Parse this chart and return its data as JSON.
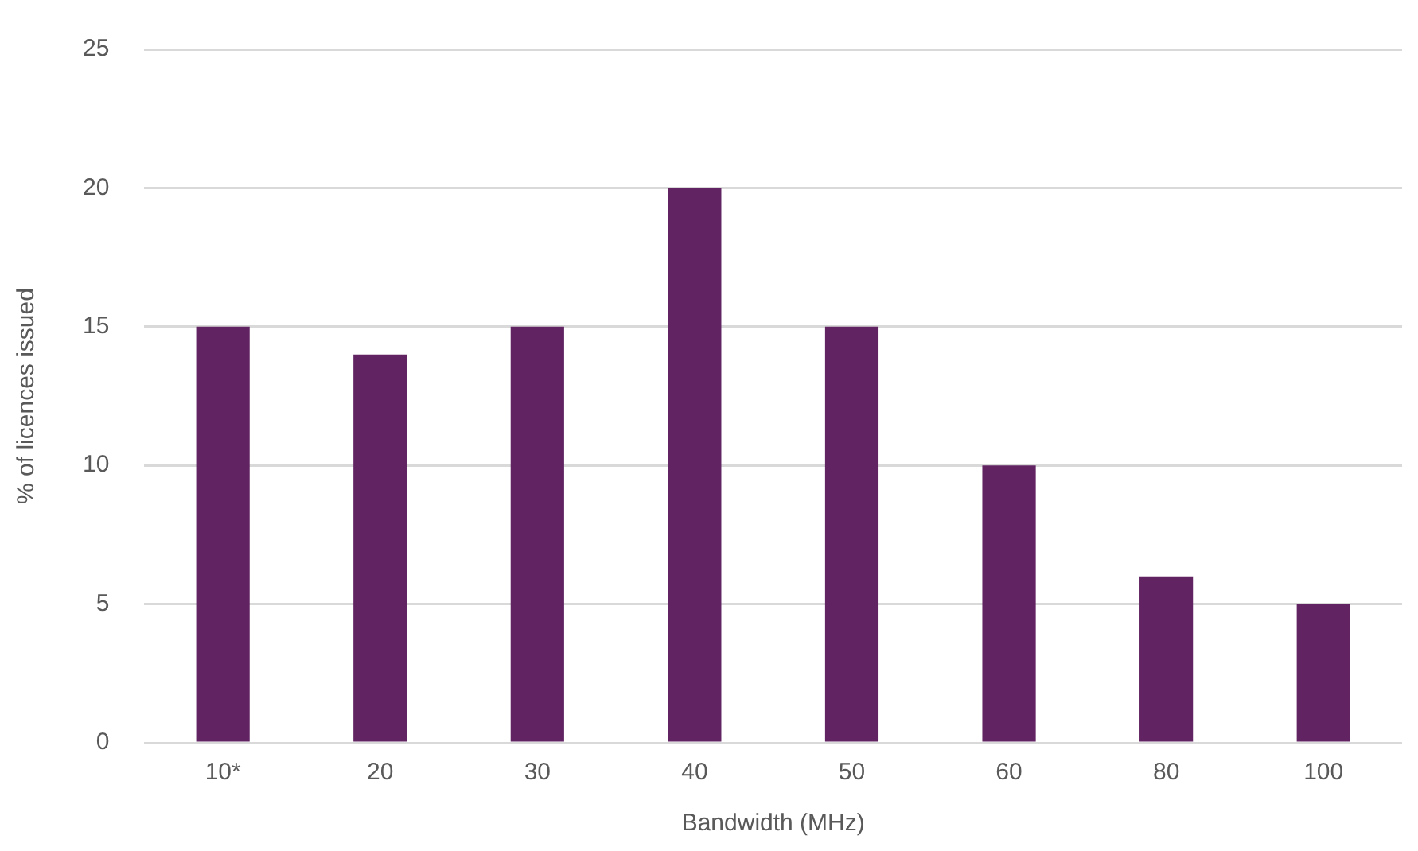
{
  "chart_data": {
    "type": "bar",
    "xlabel": "Bandwidth (MHz)",
    "ylabel": "% of licences issued",
    "categories": [
      "10*",
      "20",
      "30",
      "40",
      "50",
      "60",
      "80",
      "100"
    ],
    "values": [
      15,
      14,
      15,
      20,
      15,
      10,
      6,
      5
    ],
    "color": "#612362",
    "ylim": [
      0,
      25
    ],
    "yticks": [
      0,
      5,
      10,
      15,
      20,
      25
    ],
    "grid": "y",
    "legend": false
  }
}
